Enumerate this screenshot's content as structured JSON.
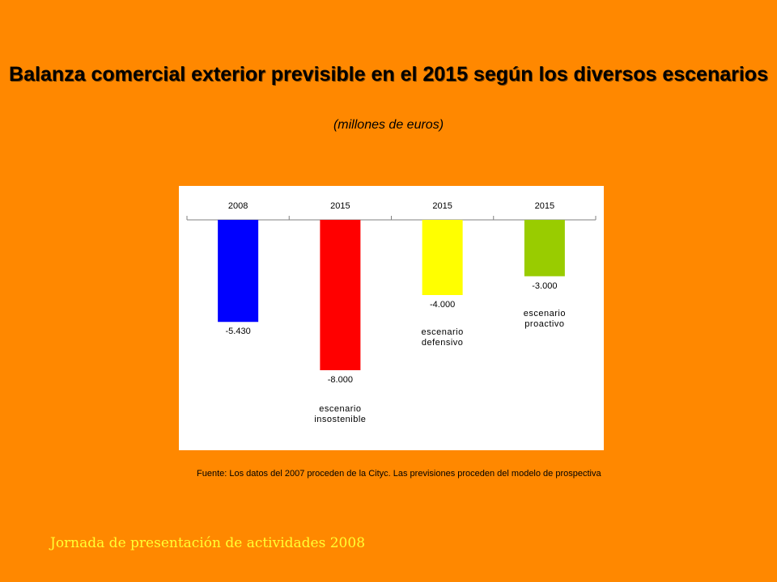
{
  "slide": {
    "title": "Balanza comercial exterior previsible en el 2015 según los diversos escenarios",
    "subtitle": "(millones de euros)",
    "source": "Fuente: Los datos del 2007 proceden de la Cityc. Las previsiones proceden del modelo de prospectiva",
    "footer": "Jornada de presentación de actividades 2008",
    "background_color": "#FF8800",
    "footer_color": "#FFFF33"
  },
  "chart_data": {
    "type": "bar",
    "categories": [
      "2008",
      "2015",
      "2015",
      "2015"
    ],
    "values": [
      -5430,
      -8000,
      -4000,
      -3000
    ],
    "value_labels": [
      "-5.430",
      "-8.000",
      "-4.000",
      "-3.000"
    ],
    "colors": [
      "#0000FF",
      "#FF0000",
      "#FFFF00",
      "#99CC00"
    ],
    "annotations": [
      [],
      [
        "escenario",
        "insostenible"
      ],
      [
        "escenario",
        "defensivo"
      ],
      [
        "escenario",
        "proactivo"
      ]
    ],
    "ylim": [
      -10000,
      0
    ],
    "grid": false
  }
}
